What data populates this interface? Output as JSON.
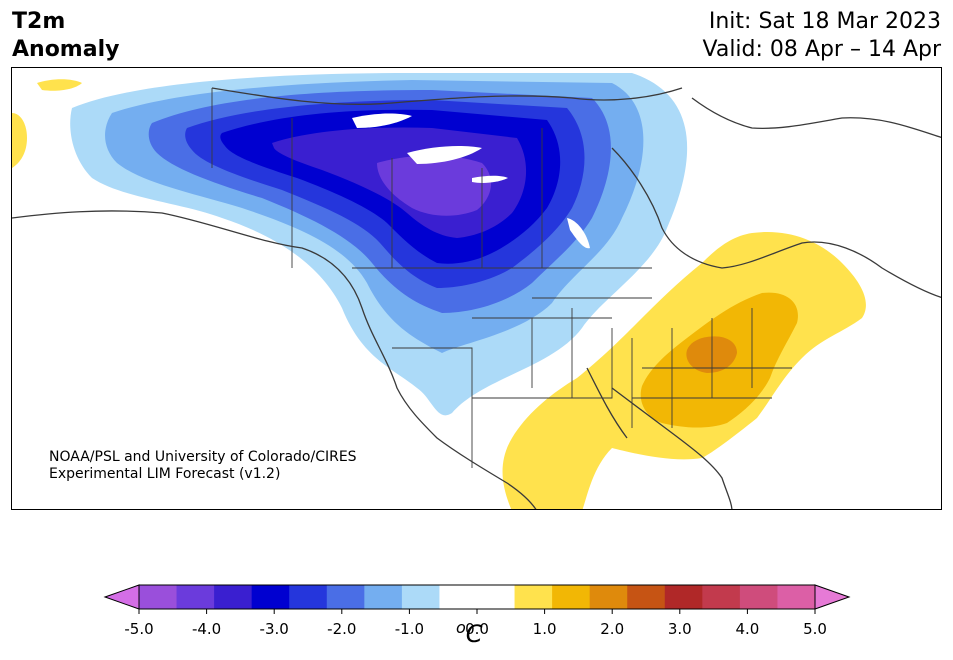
{
  "title": {
    "line1": "T2m",
    "line2": "Anomaly"
  },
  "info": {
    "init": "Init: Sat 18 Mar 2023",
    "valid": "Valid: 08 Apr – 14 Apr"
  },
  "credit": {
    "line1": "NOAA/PSL and University of Colorado/CIRES",
    "line2": "Experimental LIM Forecast (v1.2)"
  },
  "colorbar": {
    "unit_super": "o",
    "unit": "C",
    "tick_labels": [
      "-5.0",
      "-4.0",
      "-3.0",
      "-2.0",
      "-1.0",
      "0.0",
      "1.0",
      "2.0",
      "3.0",
      "4.0",
      "5.0"
    ],
    "under_color": "#d46ee6",
    "over_color": "#e67ad6",
    "colors": [
      "#d46ee6",
      "#9a4fdb",
      "#6b3bdc",
      "#3a1fd0",
      "#0000d0",
      "#2536dc",
      "#4a6ee6",
      "#74aef0",
      "#acdaf8",
      "#ffffff",
      "#ffffff",
      "#ffe24d",
      "#f2b705",
      "#df8a0c",
      "#c65414",
      "#b02828",
      "#c23a4d",
      "#cf4c7c",
      "#dc5fa6",
      "#e67ad6"
    ]
  },
  "map_legend_colors": {
    "deep_blue": "#0000d0",
    "purple": "#6b3bdc",
    "violet": "#3a1fd0",
    "mid_blue": "#2536dc",
    "blue": "#4a6ee6",
    "light_blue": "#74aef0",
    "pale_blue": "#acdaf8",
    "yellow": "#ffe24d",
    "gold": "#f2b705",
    "orange": "#df8a0c"
  }
}
